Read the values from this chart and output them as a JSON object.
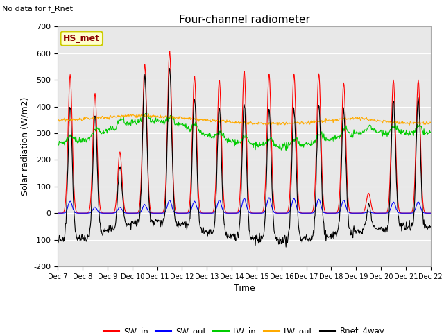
{
  "title": "Four-channel radiometer",
  "top_left_text": "No data for f_Rnet",
  "annotation_box": "HS_met",
  "xlabel": "Time",
  "ylabel": "Solar radiation (W/m2)",
  "ylim": [
    -200,
    700
  ],
  "yticks": [
    -200,
    -100,
    0,
    100,
    200,
    300,
    400,
    500,
    600,
    700
  ],
  "x_labels": [
    "Dec 7",
    "Dec 8",
    "Dec 9",
    "Dec 10",
    "Dec 11",
    "Dec 12",
    "Dec 13",
    "Dec 14",
    "Dec 15",
    "Dec 16",
    "Dec 17",
    "Dec 18",
    "Dec 19",
    "Dec 20",
    "Dec 21",
    "Dec 22"
  ],
  "colors": {
    "SW_in": "#ff0000",
    "SW_out": "#0000ff",
    "LW_in": "#00cc00",
    "LW_out": "#ffaa00",
    "Rnet_4way": "#000000"
  },
  "plot_bg_color": "#e8e8e8",
  "legend_entries": [
    "SW_in",
    "SW_out",
    "LW_in",
    "LW_out",
    "Rnet_4way"
  ],
  "figsize": [
    6.4,
    4.8
  ],
  "dpi": 100
}
